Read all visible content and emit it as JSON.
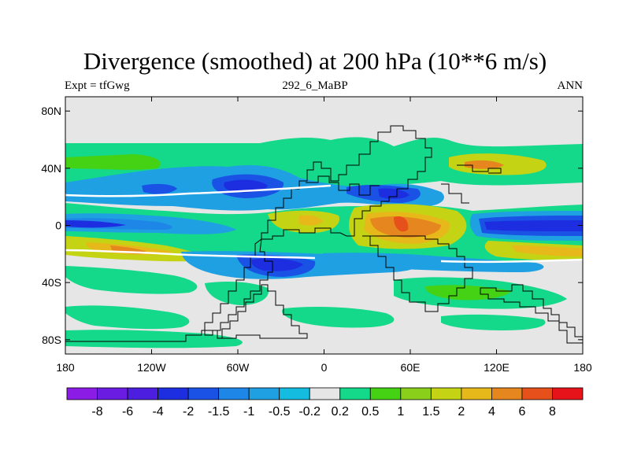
{
  "title": "Divergence (smoothed) at 200 hPa (10**6 m/s)",
  "subtitle_left": "Expt = tfGwg",
  "subtitle_center": "292_6_MaBP",
  "subtitle_right": "ANN",
  "map": {
    "projection": "cylindrical equidistant",
    "lon_range": [
      -180,
      180
    ],
    "lat_range": [
      -90,
      90
    ],
    "lat_ticks": [
      {
        "value": 80,
        "label": "80N"
      },
      {
        "value": 40,
        "label": "40N"
      },
      {
        "value": 0,
        "label": "0"
      },
      {
        "value": -40,
        "label": "40S"
      },
      {
        "value": -80,
        "label": "80S"
      }
    ],
    "lon_ticks": [
      {
        "value": -180,
        "label": "180"
      },
      {
        "value": -120,
        "label": "120W"
      },
      {
        "value": -60,
        "label": "60W"
      },
      {
        "value": 0,
        "label": "0"
      },
      {
        "value": 60,
        "label": "60E"
      },
      {
        "value": 120,
        "label": "120E"
      },
      {
        "value": 180,
        "label": "180"
      }
    ]
  },
  "colorbar": {
    "levels": [
      "-8",
      "-6",
      "-4",
      "-2",
      "-1.5",
      "-1",
      "-0.5",
      "-0.2",
      "0.2",
      "0.5",
      "1",
      "1.5",
      "2",
      "4",
      "6",
      "8"
    ],
    "colors": [
      "#8a1ce6",
      "#6a1ce2",
      "#4b1ee0",
      "#1c2ee0",
      "#1a52e6",
      "#1e86e6",
      "#1ea0e2",
      "#14bde0",
      "#e6e6e6",
      "#14d88a",
      "#46d214",
      "#8ad01a",
      "#c4d414",
      "#e6b81a",
      "#e6861e",
      "#e6501a",
      "#e6141a"
    ]
  },
  "colors": {
    "land_outline": "#000000",
    "neutral": "#e6e6e6",
    "contour_edge": "#ffffff"
  }
}
